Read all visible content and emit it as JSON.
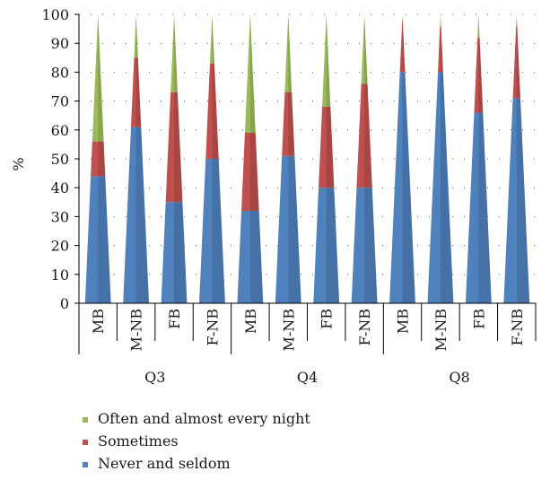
{
  "chart_data": {
    "type": "bar",
    "bar_shape": "pyramid",
    "stacked": true,
    "ylabel": "%",
    "ylim": [
      0,
      100
    ],
    "yticks": [
      0,
      10,
      20,
      30,
      40,
      50,
      60,
      70,
      80,
      90,
      100
    ],
    "grid": "dotted",
    "legend_placement": "bottom-left",
    "categories": [
      "MB",
      "M-NB",
      "FB",
      "F-NB",
      "MB",
      "M-NB",
      "FB",
      "F-NB",
      "MB",
      "M-NB",
      "FB",
      "F-NB"
    ],
    "groups": [
      {
        "label": "Q3",
        "categories": [
          "MB",
          "M-NB",
          "FB",
          "F-NB"
        ]
      },
      {
        "label": "Q4",
        "categories": [
          "MB",
          "M-NB",
          "FB",
          "F-NB"
        ]
      },
      {
        "label": "Q8",
        "categories": [
          "MB",
          "M-NB",
          "FB",
          "F-NB"
        ]
      }
    ],
    "series": [
      {
        "name": "Never and seldom",
        "color": "#4f81bd",
        "values": [
          44,
          61,
          35,
          50,
          32,
          51,
          40,
          40,
          80,
          80,
          66,
          71
        ]
      },
      {
        "name": "Sometimes",
        "color": "#c0504d",
        "values": [
          12,
          24,
          38,
          33,
          27,
          22,
          28,
          36,
          18,
          16,
          26,
          25
        ]
      },
      {
        "name": "Often and almost every night",
        "color": "#9bbb59",
        "values": [
          44,
          15,
          27,
          17,
          41,
          27,
          32,
          24,
          2,
          4,
          8,
          4
        ]
      }
    ],
    "legend_order": [
      "Often and almost every night",
      "Sometimes",
      "Never and seldom"
    ]
  }
}
